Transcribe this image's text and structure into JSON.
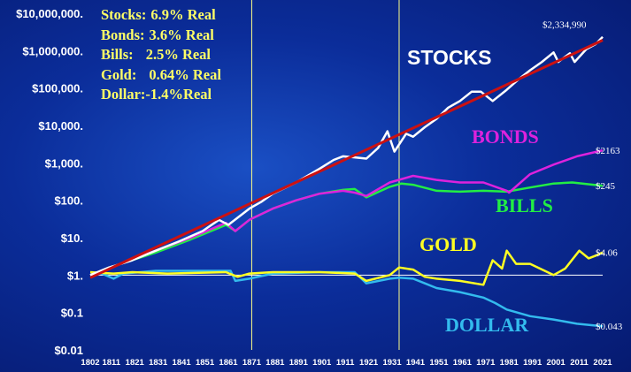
{
  "stats_box": [
    {
      "label": "Stocks:",
      "value": "6.9% Real"
    },
    {
      "label": "Bonds:",
      "value": "3.6% Real"
    },
    {
      "label": "Bills:",
      "value": "2.5% Real"
    },
    {
      "label": "Gold:",
      "value": "0.64% Real"
    },
    {
      "label": "Dollar:",
      "value": "-1.4%Real"
    }
  ],
  "chart_data": {
    "type": "line",
    "y_scale": "log",
    "ylim": [
      0.01,
      10000000
    ],
    "xlim": [
      1802,
      2021
    ],
    "y_ticks": [
      {
        "value": 10000000,
        "label": "$10,000,000."
      },
      {
        "value": 1000000,
        "label": "$1,000,000."
      },
      {
        "value": 100000,
        "label": "$100,000."
      },
      {
        "value": 10000,
        "label": "$10,000."
      },
      {
        "value": 1000,
        "label": "$1,000."
      },
      {
        "value": 100,
        "label": "$100."
      },
      {
        "value": 10,
        "label": "$10."
      },
      {
        "value": 1,
        "label": "$1."
      },
      {
        "value": 0.1,
        "label": "$0.1"
      },
      {
        "value": 0.01,
        "label": "$0.01"
      }
    ],
    "x_ticks": [
      1802,
      1811,
      1821,
      1831,
      1841,
      1851,
      1861,
      1871,
      1881,
      1891,
      1901,
      1911,
      1921,
      1931,
      1941,
      1951,
      1961,
      1971,
      1981,
      1991,
      2001,
      2011,
      2021
    ],
    "vertical_markers": [
      1871,
      1934
    ],
    "series": [
      {
        "name": "STOCKS",
        "color": "#ffffff",
        "end_label": "$2,334,990",
        "points": [
          [
            1802,
            1
          ],
          [
            1810,
            1.6
          ],
          [
            1820,
            2.5
          ],
          [
            1830,
            4.5
          ],
          [
            1840,
            8
          ],
          [
            1850,
            15
          ],
          [
            1857,
            30
          ],
          [
            1861,
            22
          ],
          [
            1870,
            60
          ],
          [
            1875,
            90
          ],
          [
            1880,
            150
          ],
          [
            1890,
            300
          ],
          [
            1900,
            700
          ],
          [
            1906,
            1200
          ],
          [
            1910,
            1500
          ],
          [
            1915,
            1400
          ],
          [
            1920,
            1300
          ],
          [
            1925,
            2500
          ],
          [
            1929,
            7000
          ],
          [
            1932,
            2000
          ],
          [
            1937,
            6000
          ],
          [
            1940,
            5000
          ],
          [
            1945,
            9000
          ],
          [
            1950,
            15000
          ],
          [
            1955,
            30000
          ],
          [
            1960,
            45000
          ],
          [
            1965,
            80000
          ],
          [
            1969,
            80000
          ],
          [
            1974,
            45000
          ],
          [
            1980,
            90000
          ],
          [
            1985,
            170000
          ],
          [
            1990,
            300000
          ],
          [
            1995,
            500000
          ],
          [
            2000,
            900000
          ],
          [
            2002,
            500000
          ],
          [
            2007,
            850000
          ],
          [
            2009,
            500000
          ],
          [
            2014,
            1100000
          ],
          [
            2018,
            1500000
          ],
          [
            2021,
            2334990
          ]
        ]
      },
      {
        "name": "TREND",
        "color": "#cc1111",
        "points": [
          [
            1802,
            0.85
          ],
          [
            2021,
            1900000
          ]
        ]
      },
      {
        "name": "BONDS",
        "color": "#dd22dd",
        "end_label": "$2163",
        "points": [
          [
            1802,
            1
          ],
          [
            1815,
            2
          ],
          [
            1830,
            4.5
          ],
          [
            1845,
            10
          ],
          [
            1860,
            25
          ],
          [
            1864,
            15
          ],
          [
            1870,
            30
          ],
          [
            1880,
            60
          ],
          [
            1890,
            100
          ],
          [
            1900,
            150
          ],
          [
            1910,
            180
          ],
          [
            1915,
            160
          ],
          [
            1920,
            130
          ],
          [
            1930,
            300
          ],
          [
            1940,
            450
          ],
          [
            1950,
            350
          ],
          [
            1960,
            300
          ],
          [
            1970,
            300
          ],
          [
            1980,
            180
          ],
          [
            1981,
            160
          ],
          [
            1990,
            500
          ],
          [
            2000,
            900
          ],
          [
            2010,
            1500
          ],
          [
            2021,
            2163
          ]
        ]
      },
      {
        "name": "BILLS",
        "color": "#22ee44",
        "end_label": "$245",
        "points": [
          [
            1802,
            1
          ],
          [
            1815,
            2
          ],
          [
            1830,
            4
          ],
          [
            1845,
            9
          ],
          [
            1860,
            22
          ],
          [
            1864,
            15
          ],
          [
            1870,
            30
          ],
          [
            1880,
            60
          ],
          [
            1890,
            100
          ],
          [
            1900,
            150
          ],
          [
            1910,
            190
          ],
          [
            1915,
            200
          ],
          [
            1920,
            120
          ],
          [
            1930,
            230
          ],
          [
            1935,
            280
          ],
          [
            1940,
            260
          ],
          [
            1950,
            180
          ],
          [
            1960,
            170
          ],
          [
            1970,
            180
          ],
          [
            1980,
            170
          ],
          [
            1990,
            220
          ],
          [
            2000,
            280
          ],
          [
            2008,
            300
          ],
          [
            2021,
            245
          ]
        ]
      },
      {
        "name": "GOLD",
        "color": "#ffff22",
        "end_label": "$4.06",
        "points": [
          [
            1802,
            1.2
          ],
          [
            1812,
            1.1
          ],
          [
            1820,
            1.2
          ],
          [
            1835,
            1.1
          ],
          [
            1860,
            1.2
          ],
          [
            1865,
            0.9
          ],
          [
            1870,
            1.1
          ],
          [
            1880,
            1.2
          ],
          [
            1900,
            1.2
          ],
          [
            1915,
            1.1
          ],
          [
            1920,
            0.7
          ],
          [
            1930,
            1.0
          ],
          [
            1934,
            1.6
          ],
          [
            1940,
            1.4
          ],
          [
            1945,
            0.9
          ],
          [
            1950,
            0.8
          ],
          [
            1960,
            0.7
          ],
          [
            1970,
            0.55
          ],
          [
            1974,
            2.5
          ],
          [
            1978,
            1.5
          ],
          [
            1980,
            4.5
          ],
          [
            1984,
            2.0
          ],
          [
            1990,
            2.0
          ],
          [
            2000,
            1.0
          ],
          [
            2005,
            1.5
          ],
          [
            2011,
            4.5
          ],
          [
            2015,
            2.8
          ],
          [
            2019,
            3.5
          ],
          [
            2021,
            4.06
          ]
        ]
      },
      {
        "name": "DOLLAR",
        "color": "#33bbee",
        "end_label": "$0.043",
        "points": [
          [
            1802,
            1
          ],
          [
            1807,
            1.1
          ],
          [
            1812,
            0.8
          ],
          [
            1816,
            1.1
          ],
          [
            1830,
            1.3
          ],
          [
            1850,
            1.3
          ],
          [
            1862,
            1.3
          ],
          [
            1864,
            0.7
          ],
          [
            1870,
            0.8
          ],
          [
            1880,
            1.1
          ],
          [
            1900,
            1.2
          ],
          [
            1915,
            1.2
          ],
          [
            1920,
            0.6
          ],
          [
            1930,
            0.8
          ],
          [
            1934,
            0.85
          ],
          [
            1940,
            0.8
          ],
          [
            1945,
            0.6
          ],
          [
            1950,
            0.45
          ],
          [
            1960,
            0.35
          ],
          [
            1970,
            0.25
          ],
          [
            1975,
            0.18
          ],
          [
            1980,
            0.12
          ],
          [
            1990,
            0.08
          ],
          [
            2000,
            0.065
          ],
          [
            2010,
            0.05
          ],
          [
            2021,
            0.043
          ]
        ]
      }
    ],
    "series_labels": [
      "STOCKS",
      "BONDS",
      "BILLS",
      "GOLD",
      "DOLLAR"
    ]
  }
}
